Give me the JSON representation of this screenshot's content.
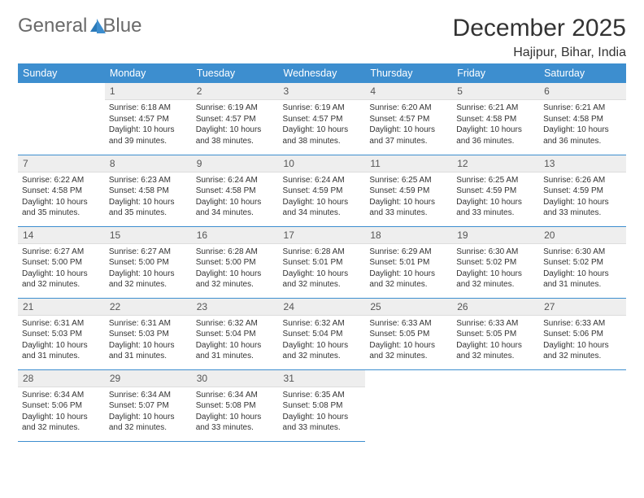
{
  "logo": {
    "word1": "General",
    "word2": "Blue"
  },
  "title": "December 2025",
  "location": "Hajipur, Bihar, India",
  "header_bg": "#3d8ecf",
  "days_of_week": [
    "Sunday",
    "Monday",
    "Tuesday",
    "Wednesday",
    "Thursday",
    "Friday",
    "Saturday"
  ],
  "first_weekday_offset": 1,
  "num_days": 31,
  "cells": {
    "1": {
      "sunrise": "6:18 AM",
      "sunset": "4:57 PM",
      "daylight": "10 hours and 39 minutes."
    },
    "2": {
      "sunrise": "6:19 AM",
      "sunset": "4:57 PM",
      "daylight": "10 hours and 38 minutes."
    },
    "3": {
      "sunrise": "6:19 AM",
      "sunset": "4:57 PM",
      "daylight": "10 hours and 38 minutes."
    },
    "4": {
      "sunrise": "6:20 AM",
      "sunset": "4:57 PM",
      "daylight": "10 hours and 37 minutes."
    },
    "5": {
      "sunrise": "6:21 AM",
      "sunset": "4:58 PM",
      "daylight": "10 hours and 36 minutes."
    },
    "6": {
      "sunrise": "6:21 AM",
      "sunset": "4:58 PM",
      "daylight": "10 hours and 36 minutes."
    },
    "7": {
      "sunrise": "6:22 AM",
      "sunset": "4:58 PM",
      "daylight": "10 hours and 35 minutes."
    },
    "8": {
      "sunrise": "6:23 AM",
      "sunset": "4:58 PM",
      "daylight": "10 hours and 35 minutes."
    },
    "9": {
      "sunrise": "6:24 AM",
      "sunset": "4:58 PM",
      "daylight": "10 hours and 34 minutes."
    },
    "10": {
      "sunrise": "6:24 AM",
      "sunset": "4:59 PM",
      "daylight": "10 hours and 34 minutes."
    },
    "11": {
      "sunrise": "6:25 AM",
      "sunset": "4:59 PM",
      "daylight": "10 hours and 33 minutes."
    },
    "12": {
      "sunrise": "6:25 AM",
      "sunset": "4:59 PM",
      "daylight": "10 hours and 33 minutes."
    },
    "13": {
      "sunrise": "6:26 AM",
      "sunset": "4:59 PM",
      "daylight": "10 hours and 33 minutes."
    },
    "14": {
      "sunrise": "6:27 AM",
      "sunset": "5:00 PM",
      "daylight": "10 hours and 32 minutes."
    },
    "15": {
      "sunrise": "6:27 AM",
      "sunset": "5:00 PM",
      "daylight": "10 hours and 32 minutes."
    },
    "16": {
      "sunrise": "6:28 AM",
      "sunset": "5:00 PM",
      "daylight": "10 hours and 32 minutes."
    },
    "17": {
      "sunrise": "6:28 AM",
      "sunset": "5:01 PM",
      "daylight": "10 hours and 32 minutes."
    },
    "18": {
      "sunrise": "6:29 AM",
      "sunset": "5:01 PM",
      "daylight": "10 hours and 32 minutes."
    },
    "19": {
      "sunrise": "6:30 AM",
      "sunset": "5:02 PM",
      "daylight": "10 hours and 32 minutes."
    },
    "20": {
      "sunrise": "6:30 AM",
      "sunset": "5:02 PM",
      "daylight": "10 hours and 31 minutes."
    },
    "21": {
      "sunrise": "6:31 AM",
      "sunset": "5:03 PM",
      "daylight": "10 hours and 31 minutes."
    },
    "22": {
      "sunrise": "6:31 AM",
      "sunset": "5:03 PM",
      "daylight": "10 hours and 31 minutes."
    },
    "23": {
      "sunrise": "6:32 AM",
      "sunset": "5:04 PM",
      "daylight": "10 hours and 31 minutes."
    },
    "24": {
      "sunrise": "6:32 AM",
      "sunset": "5:04 PM",
      "daylight": "10 hours and 32 minutes."
    },
    "25": {
      "sunrise": "6:33 AM",
      "sunset": "5:05 PM",
      "daylight": "10 hours and 32 minutes."
    },
    "26": {
      "sunrise": "6:33 AM",
      "sunset": "5:05 PM",
      "daylight": "10 hours and 32 minutes."
    },
    "27": {
      "sunrise": "6:33 AM",
      "sunset": "5:06 PM",
      "daylight": "10 hours and 32 minutes."
    },
    "28": {
      "sunrise": "6:34 AM",
      "sunset": "5:06 PM",
      "daylight": "10 hours and 32 minutes."
    },
    "29": {
      "sunrise": "6:34 AM",
      "sunset": "5:07 PM",
      "daylight": "10 hours and 32 minutes."
    },
    "30": {
      "sunrise": "6:34 AM",
      "sunset": "5:08 PM",
      "daylight": "10 hours and 33 minutes."
    },
    "31": {
      "sunrise": "6:35 AM",
      "sunset": "5:08 PM",
      "daylight": "10 hours and 33 minutes."
    }
  },
  "labels": {
    "sunrise": "Sunrise:",
    "sunset": "Sunset:",
    "daylight": "Daylight:"
  }
}
